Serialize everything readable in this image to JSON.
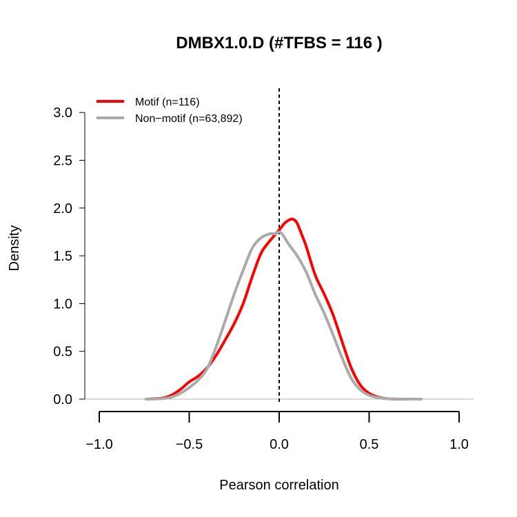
{
  "chart_data": {
    "type": "line",
    "title": "DMBX1.0.D (#TFBS = 116 )",
    "xlabel": "Pearson correlation",
    "ylabel": "Density",
    "xlim": [
      -1.0,
      1.0
    ],
    "ylim": [
      0.0,
      3.0
    ],
    "x_ticks": [
      -1.0,
      -0.5,
      0.0,
      0.5,
      1.0
    ],
    "x_tick_labels": [
      "−1.0",
      "−0.5",
      "0.0",
      "0.5",
      "1.0"
    ],
    "y_ticks": [
      0.0,
      0.5,
      1.0,
      1.5,
      2.0,
      2.5,
      3.0
    ],
    "y_tick_labels": [
      "0.0",
      "0.5",
      "1.0",
      "1.5",
      "2.0",
      "2.5",
      "3.0"
    ],
    "vline_x": 0.0,
    "legend_position": "top-left",
    "series": [
      {
        "name": "Motif (n=116)",
        "color": "#ff0000",
        "x": [
          -0.74,
          -0.65,
          -0.6,
          -0.55,
          -0.5,
          -0.45,
          -0.4,
          -0.35,
          -0.3,
          -0.25,
          -0.2,
          -0.15,
          -0.1,
          -0.05,
          0.0,
          0.03,
          0.06,
          0.08,
          0.1,
          0.13,
          0.15,
          0.2,
          0.25,
          0.3,
          0.35,
          0.4,
          0.45,
          0.5,
          0.55,
          0.6,
          0.65,
          0.72
        ],
        "y": [
          0.0,
          0.01,
          0.04,
          0.1,
          0.18,
          0.24,
          0.33,
          0.46,
          0.62,
          0.79,
          1.0,
          1.28,
          1.53,
          1.66,
          1.77,
          1.84,
          1.88,
          1.88,
          1.84,
          1.7,
          1.6,
          1.3,
          1.1,
          0.88,
          0.6,
          0.33,
          0.15,
          0.06,
          0.02,
          0.005,
          0.001,
          0.0
        ]
      },
      {
        "name": "Non−motif (n=63,892)",
        "color": "#aaaaaa",
        "x": [
          -0.74,
          -0.65,
          -0.6,
          -0.55,
          -0.5,
          -0.45,
          -0.4,
          -0.35,
          -0.3,
          -0.25,
          -0.2,
          -0.15,
          -0.1,
          -0.05,
          -0.02,
          0.0,
          0.02,
          0.05,
          0.1,
          0.15,
          0.2,
          0.25,
          0.3,
          0.35,
          0.4,
          0.45,
          0.5,
          0.55,
          0.6,
          0.65,
          0.7,
          0.79
        ],
        "y": [
          0.0,
          0.005,
          0.02,
          0.06,
          0.12,
          0.2,
          0.32,
          0.55,
          0.82,
          1.1,
          1.35,
          1.58,
          1.69,
          1.73,
          1.73,
          1.75,
          1.72,
          1.63,
          1.5,
          1.33,
          1.1,
          0.9,
          0.67,
          0.43,
          0.22,
          0.1,
          0.04,
          0.015,
          0.005,
          0.002,
          0.001,
          0.0
        ]
      }
    ]
  }
}
